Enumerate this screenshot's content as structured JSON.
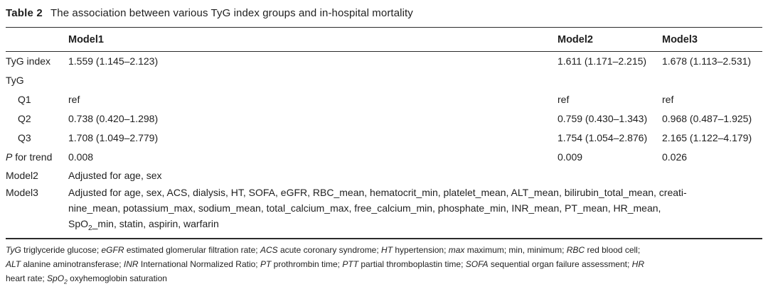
{
  "title": {
    "label": "Table 2",
    "text": "The association between various TyG index groups and in-hospital mortality"
  },
  "header": {
    "col1": "",
    "model1": "Model1",
    "model2": "Model2",
    "model3": "Model3"
  },
  "rows": [
    {
      "label": "TyG index",
      "model1": "1.559 (1.145–2.123)",
      "model2": "1.611 (1.171–2.215)",
      "model3": "1.678 (1.113–2.531)"
    },
    {
      "label": "TyG",
      "model1": "",
      "model2": "",
      "model3": ""
    },
    {
      "label": "Q1",
      "model1": "ref",
      "model2": "ref",
      "model3": "ref"
    },
    {
      "label": "Q2",
      "model1": "0.738 (0.420–1.298)",
      "model2": "0.759 (0.430–1.343)",
      "model3": "0.968 (0.487–1.925)"
    },
    {
      "label": "Q3",
      "model1": "1.708 (1.049–2.779)",
      "model2": "1.754 (1.054–2.876)",
      "model3": "2.165 (1.122–4.179)"
    },
    {
      "label_rich": [
        {
          "t": "P",
          "i": 1
        },
        {
          "t": " for trend"
        }
      ],
      "model1": "0.008",
      "model2": "0.009",
      "model3": "0.026"
    },
    {
      "label": "Model2",
      "span": "Adjusted for age, sex"
    },
    {
      "label": "Model3",
      "span_lines": [
        [
          {
            "t": "Adjusted for age, sex, ACS, dialysis, HT, SOFA, eGFR, RBC_mean, hematocrit_min, platelet_mean, ALT_mean, bilirubin_total_mean, creati-"
          }
        ],
        [
          {
            "t": "nine_mean, potassium_max, sodium_mean, total_calcium_max, free_calcium_min, phosphate_min, INR_mean, PT_mean, HR_mean,"
          }
        ],
        [
          {
            "t": "SpO"
          },
          {
            "t": "2",
            "sub": 1
          },
          {
            "t": "_min, statin, aspirin, warfarin"
          }
        ]
      ]
    }
  ],
  "footnote": {
    "lines": [
      [
        {
          "t": "TyG",
          "i": 1
        },
        {
          "t": " triglyceride glucose; "
        },
        {
          "t": "eGFR",
          "i": 1
        },
        {
          "t": " estimated glomerular filtration rate; "
        },
        {
          "t": "ACS",
          "i": 1
        },
        {
          "t": " acute coronary syndrome; "
        },
        {
          "t": "HT",
          "i": 1
        },
        {
          "t": " hypertension; "
        },
        {
          "t": "max",
          "i": 1
        },
        {
          "t": " maximum; min, minimum; "
        },
        {
          "t": "RBC",
          "i": 1
        },
        {
          "t": " red blood cell;"
        }
      ],
      [
        {
          "t": "ALT",
          "i": 1
        },
        {
          "t": " alanine aminotransferase; "
        },
        {
          "t": "INR",
          "i": 1
        },
        {
          "t": " International Normalized Ratio; "
        },
        {
          "t": "PT",
          "i": 1
        },
        {
          "t": " prothrombin time; "
        },
        {
          "t": "PTT",
          "i": 1
        },
        {
          "t": " partial thromboplastin time; "
        },
        {
          "t": "SOFA",
          "i": 1
        },
        {
          "t": " sequential organ failure assessment; "
        },
        {
          "t": "HR",
          "i": 1
        }
      ],
      [
        {
          "t": "heart rate; "
        },
        {
          "t": "SpO",
          "i": 1
        },
        {
          "t": "2",
          "i": 1,
          "sub": 1
        },
        {
          "t": " oxyhemoglobin saturation"
        }
      ]
    ]
  },
  "colors": {
    "background": "#ffffff",
    "text": "#1f1f1f",
    "rule": "#2b2b2b"
  }
}
